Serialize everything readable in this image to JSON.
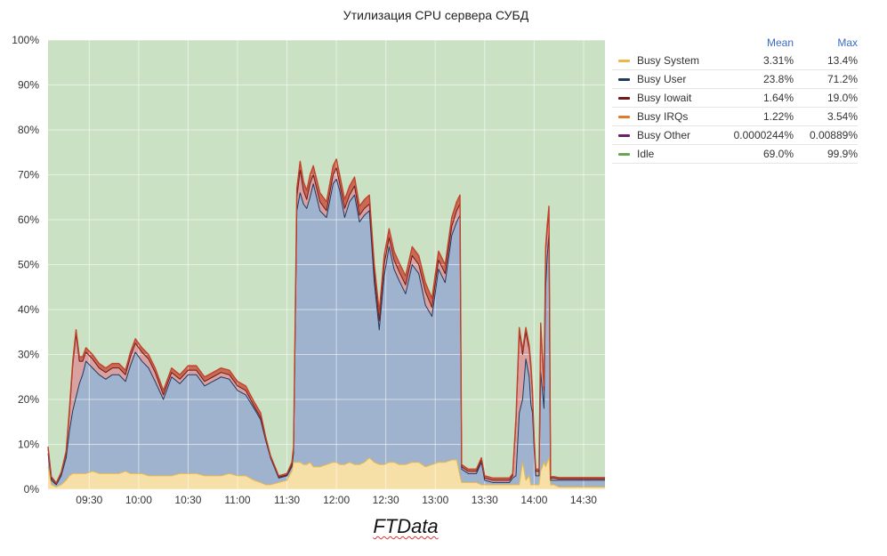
{
  "chart_data": {
    "type": "area",
    "title": "Утилизация CPU сервера СУБД",
    "footer": "FTData",
    "ylim": [
      0,
      100
    ],
    "y_ticks": [
      "0%",
      "10%",
      "20%",
      "30%",
      "40%",
      "50%",
      "60%",
      "70%",
      "80%",
      "90%",
      "100%"
    ],
    "x_ticks": [
      "09:30",
      "10:00",
      "10:30",
      "11:00",
      "11:30",
      "12:00",
      "12:30",
      "13:00",
      "13:30",
      "14:00",
      "14:30"
    ],
    "x_range": [
      "09:05",
      "14:43"
    ],
    "stacked": true,
    "grid": true,
    "legend_position": "right",
    "legend_columns": [
      "Mean",
      "Max"
    ],
    "legend": [
      {
        "name": "Busy System",
        "color": "#e8b949",
        "mean": "3.31%",
        "max": "13.4%"
      },
      {
        "name": "Busy User",
        "color": "#1f3a63",
        "mean": "23.8%",
        "max": "71.2%"
      },
      {
        "name": "Busy Iowait",
        "color": "#6f1a1a",
        "mean": "1.64%",
        "max": "19.0%"
      },
      {
        "name": "Busy IRQs",
        "color": "#e07a2e",
        "mean": "1.22%",
        "max": "3.54%"
      },
      {
        "name": "Busy Other",
        "color": "#6a1f6a",
        "mean": "0.0000244%",
        "max": "0.00889%"
      },
      {
        "name": "Idle",
        "color": "#6aa84f",
        "mean": "69.0%",
        "max": "99.9%"
      }
    ],
    "area_colors": {
      "system": "#f6e0a8",
      "user": "#9fb3ce",
      "iowait": "#d9a1a0",
      "idle": "#cbe1c4",
      "irq_line": "#c1432b"
    },
    "x_times": [
      "09:05",
      "09:07",
      "09:10",
      "09:13",
      "09:16",
      "09:18",
      "09:20",
      "09:22",
      "09:24",
      "09:26",
      "09:28",
      "09:32",
      "09:36",
      "09:40",
      "09:44",
      "09:48",
      "09:52",
      "09:55",
      "09:58",
      "10:02",
      "10:06",
      "10:10",
      "10:15",
      "10:20",
      "10:25",
      "10:30",
      "10:35",
      "10:40",
      "10:45",
      "10:50",
      "10:55",
      "11:00",
      "11:05",
      "11:10",
      "11:14",
      "11:17",
      "11:20",
      "11:25",
      "11:30",
      "11:33",
      "11:34",
      "11:36",
      "11:38",
      "11:40",
      "11:42",
      "11:44",
      "11:46",
      "11:50",
      "11:54",
      "11:58",
      "12:00",
      "12:02",
      "12:05",
      "12:08",
      "12:11",
      "12:14",
      "12:17",
      "12:20",
      "12:23",
      "12:26",
      "12:29",
      "12:32",
      "12:35",
      "12:38",
      "12:42",
      "12:46",
      "12:50",
      "12:54",
      "12:58",
      "13:02",
      "13:06",
      "13:10",
      "13:13",
      "13:15",
      "13:16",
      "13:20",
      "13:25",
      "13:28",
      "13:30",
      "13:35",
      "13:40",
      "13:45",
      "13:47",
      "13:49",
      "13:51",
      "13:53",
      "13:55",
      "13:57",
      "13:58",
      "13:59",
      "14:00",
      "14:01",
      "14:03",
      "14:04",
      "14:06",
      "14:07",
      "14:08",
      "14:09",
      "14:10",
      "14:12",
      "14:15",
      "14:20",
      "14:25",
      "14:30",
      "14:35",
      "14:40",
      "14:43"
    ],
    "series": [
      {
        "name": "Busy System",
        "values": [
          5,
          1,
          0.5,
          1,
          2,
          3,
          3.5,
          3.5,
          3.5,
          3.5,
          3.5,
          4,
          3.5,
          3.5,
          3.5,
          3.5,
          4,
          3.5,
          3.5,
          3.5,
          3,
          3,
          3,
          3,
          3.5,
          3.5,
          3.5,
          3,
          3,
          3,
          3.5,
          3,
          3,
          2,
          1.5,
          1,
          1,
          1.5,
          2,
          4,
          6,
          6,
          6,
          5.5,
          5.5,
          6,
          5,
          5,
          5.5,
          6,
          6,
          5.5,
          5.5,
          6,
          5.5,
          5.5,
          6,
          7,
          6,
          5.5,
          5.5,
          6,
          6,
          5.5,
          5.5,
          6,
          6,
          5,
          5.5,
          6,
          6,
          6.5,
          6.5,
          3,
          1.5,
          1.5,
          1.5,
          1,
          1,
          1,
          1,
          1,
          1,
          1,
          1,
          6,
          2,
          3,
          1,
          1,
          1,
          1,
          1,
          4,
          6,
          5,
          6,
          7,
          1,
          1,
          0.5,
          0.5,
          0.5,
          0.5,
          0.5,
          0.5,
          0.5
        ]
      },
      {
        "name": "Busy User",
        "values": [
          3,
          1,
          0.5,
          2,
          5,
          10,
          14,
          17,
          20,
          22,
          25,
          23,
          22,
          21,
          22,
          22,
          20,
          24,
          27,
          25,
          24,
          21,
          17,
          22,
          20,
          22,
          22,
          20,
          21,
          22,
          21,
          19,
          18,
          16,
          14,
          10,
          6,
          1,
          1,
          1,
          2,
          56,
          60,
          58,
          57,
          59,
          63,
          57,
          55,
          62,
          63,
          61,
          55,
          58,
          60,
          54,
          55,
          55,
          40,
          30,
          42,
          48,
          43,
          41,
          38,
          44,
          42,
          36,
          33,
          43,
          40,
          50,
          53,
          58,
          3,
          2,
          2,
          5,
          1,
          0.5,
          0.5,
          0.5,
          1.5,
          2,
          16,
          14,
          27,
          22,
          18,
          16,
          8,
          2,
          2,
          22,
          12,
          40,
          46,
          50,
          1,
          1,
          1.5,
          1.5,
          1.5,
          1.5,
          1.5,
          1.5,
          1.5
        ]
      },
      {
        "name": "Busy Iowait",
        "values": [
          1,
          0.5,
          0.2,
          0.5,
          1,
          4,
          10,
          14,
          5,
          3,
          2,
          2,
          1.5,
          1.5,
          1.5,
          1.5,
          1.5,
          2,
          2,
          2,
          2,
          2,
          1,
          1,
          1,
          1,
          1,
          1,
          1,
          1,
          1,
          1,
          1,
          0.5,
          0.5,
          0.3,
          0.2,
          0.2,
          0.2,
          0.5,
          0.5,
          3,
          5,
          3,
          2,
          3,
          2,
          2,
          1.5,
          2,
          2.5,
          1.5,
          2,
          1.5,
          2,
          1.5,
          1.5,
          1.5,
          2,
          2,
          2.5,
          2,
          2,
          2,
          2,
          2,
          2,
          3,
          2,
          2,
          2,
          2,
          2.5,
          2.5,
          0.5,
          0.5,
          0.5,
          0.5,
          0.5,
          0.5,
          0.5,
          0.5,
          0.5,
          12,
          18,
          10,
          6,
          6,
          8,
          4,
          2,
          1,
          1,
          10,
          4,
          8,
          6,
          5,
          0.5,
          0.5,
          0.3,
          0.3,
          0.3,
          0.3,
          0.3,
          0.3,
          0.3
        ]
      },
      {
        "name": "Busy IRQs",
        "values": [
          0.5,
          0.3,
          0.2,
          0.3,
          0.5,
          1,
          1,
          1,
          1,
          1,
          1,
          1,
          1,
          1,
          1,
          1,
          1,
          1,
          1,
          1,
          1,
          1,
          1,
          1,
          1,
          1,
          1,
          1,
          1,
          1,
          1,
          1,
          1,
          1,
          1,
          0.5,
          0.3,
          0.3,
          0.3,
          0.5,
          1,
          2,
          2,
          2,
          2,
          2,
          2,
          2,
          2,
          2,
          2,
          2,
          2,
          2,
          2,
          2,
          2,
          2,
          2,
          2,
          2,
          2,
          2,
          2,
          2,
          2,
          2,
          2,
          2,
          2,
          2,
          2,
          2,
          2,
          0.5,
          0.5,
          0.5,
          0.5,
          0.5,
          0.5,
          0.5,
          0.5,
          0.5,
          1,
          1,
          1,
          1,
          1,
          1,
          1,
          0.5,
          0.5,
          0.5,
          1,
          1,
          1,
          1,
          1,
          0.3,
          0.3,
          0.3,
          0.3,
          0.3,
          0.3,
          0.3,
          0.3,
          0.3
        ]
      },
      {
        "name": "Busy Other",
        "values": [
          0,
          0,
          0,
          0,
          0,
          0,
          0,
          0,
          0,
          0,
          0,
          0,
          0,
          0,
          0,
          0,
          0,
          0,
          0,
          0,
          0,
          0,
          0,
          0,
          0,
          0,
          0,
          0,
          0,
          0,
          0,
          0,
          0,
          0,
          0,
          0,
          0,
          0,
          0,
          0,
          0,
          0,
          0,
          0,
          0,
          0,
          0,
          0,
          0,
          0,
          0,
          0,
          0,
          0,
          0,
          0,
          0,
          0,
          0,
          0,
          0,
          0,
          0,
          0,
          0,
          0,
          0,
          0,
          0,
          0,
          0,
          0,
          0,
          0,
          0,
          0,
          0,
          0,
          0,
          0,
          0,
          0,
          0,
          0,
          0,
          0,
          0,
          0,
          0,
          0,
          0,
          0,
          0,
          0,
          0,
          0,
          0,
          0,
          0,
          0,
          0,
          0,
          0,
          0,
          0,
          0,
          0
        ]
      }
    ]
  }
}
